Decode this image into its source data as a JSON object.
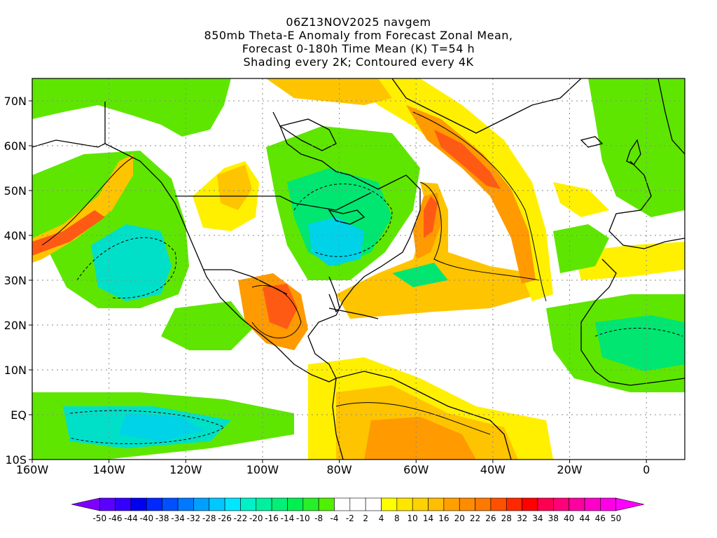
{
  "title": {
    "line1": "06Z13NOV2025 navgem",
    "line2": "850mb Theta-E Anomaly from Forecast Zonal Mean,",
    "line3": "Forecast 0-180h Time Mean (K) T=54 h",
    "line4": "Shading every 2K; Contoured every 4K"
  },
  "map": {
    "lon_range": [
      -160,
      10
    ],
    "lat_range": [
      -10,
      75
    ],
    "x_ticks": [
      "160W",
      "140W",
      "120W",
      "100W",
      "80W",
      "60W",
      "40W",
      "20W",
      "0"
    ],
    "y_ticks": [
      "70N",
      "60N",
      "50N",
      "40N",
      "30N",
      "20N",
      "10N",
      "EQ",
      "10S"
    ]
  },
  "colorbar": {
    "labels": [
      "-50",
      "-46",
      "-44",
      "-40",
      "-38",
      "-34",
      "-32",
      "-28",
      "-26",
      "-22",
      "-20",
      "-16",
      "-14",
      "-10",
      "-8",
      "-4",
      "-2",
      "2",
      "4",
      "8",
      "10",
      "14",
      "16",
      "20",
      "22",
      "26",
      "28",
      "32",
      "34",
      "38",
      "40",
      "44",
      "46",
      "50"
    ],
    "colors": [
      "#8000ff",
      "#5a00ff",
      "#3300ff",
      "#0000f0",
      "#0028ff",
      "#0050ff",
      "#0078ff",
      "#00a0ff",
      "#00c8ff",
      "#00e6ff",
      "#00f0c8",
      "#00f0a0",
      "#00f078",
      "#00f050",
      "#28f028",
      "#50f000",
      "#ffffff",
      "#ffffff",
      "#ffffff",
      "#ffff00",
      "#ffe600",
      "#ffd200",
      "#ffbe00",
      "#ffa000",
      "#ff8c00",
      "#ff7800",
      "#ff5000",
      "#ff2800",
      "#ff0000",
      "#ff0050",
      "#ff0078",
      "#ff00a0",
      "#ff00c8",
      "#ff00e6",
      "#ff00ff"
    ]
  },
  "palette": {
    "green": "#5ee600",
    "green_mid": "#00e670",
    "cyan": "#00e0c8",
    "cyan_deep": "#00d2e8",
    "yellow": "#fff000",
    "gold": "#ffc400",
    "orange": "#ff9a00",
    "red_orange": "#ff5a14",
    "white": "#ffffff"
  }
}
